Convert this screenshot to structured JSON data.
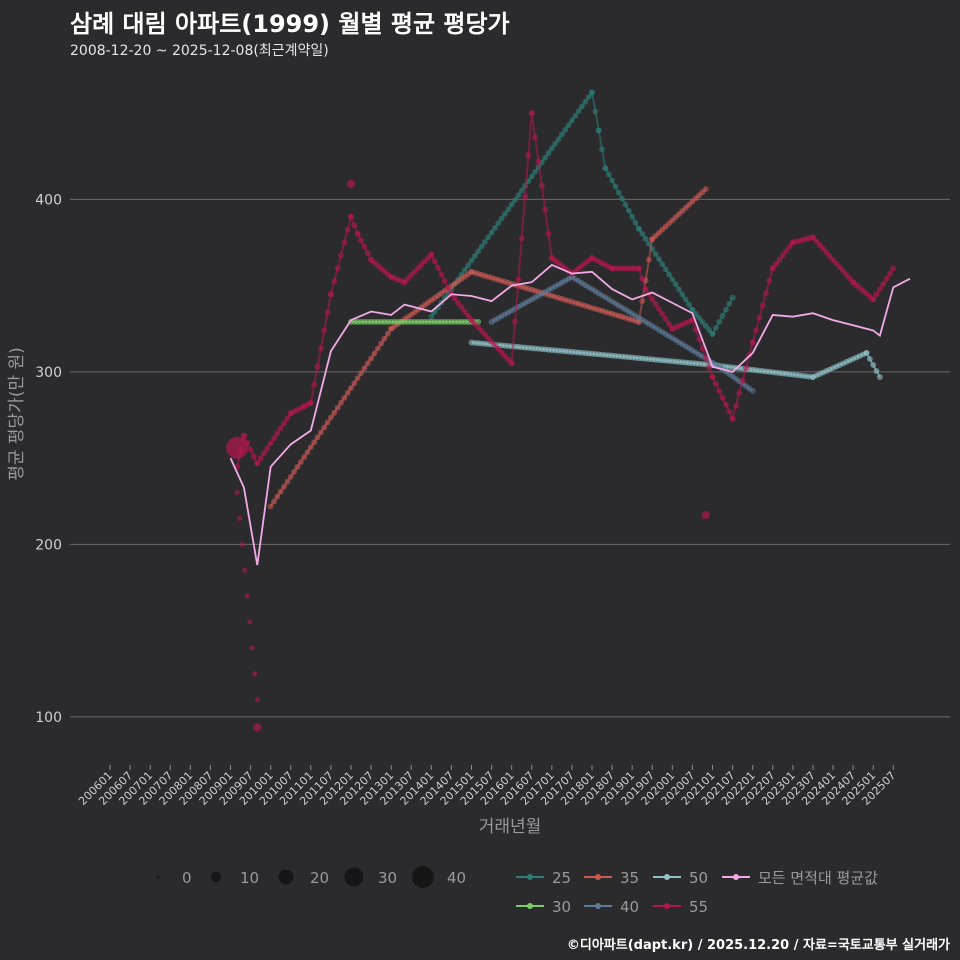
{
  "header": {
    "title": "삼례 대림 아파트(1999) 월별 평균 평당가",
    "subtitle": "2008-12-20 ~ 2025-12-08(최근계약일)"
  },
  "footer": {
    "credit": "©디아파트(dapt.kr) / 2025.12.20 / 자료=국토교통부 실거래가"
  },
  "chart_data": {
    "type": "scatter",
    "title": "삼례 대림 아파트(1999) 월별 평균 평당가",
    "xlabel": "거래년월",
    "ylabel": "평균 평당가(만 원)",
    "ylim": [
      75,
      475
    ],
    "yticks": [
      100,
      200,
      300,
      400
    ],
    "x_start": "2006-01",
    "x_end": "2025-12",
    "x_tick_labels": [
      "200601",
      "200607",
      "200701",
      "200707",
      "200801",
      "200807",
      "200901",
      "200907",
      "201001",
      "201007",
      "201101",
      "201107",
      "201201",
      "201207",
      "201301",
      "201307",
      "201401",
      "201407",
      "201501",
      "201507",
      "201601",
      "201607",
      "201701",
      "201707",
      "201801",
      "201807",
      "201901",
      "201907",
      "202001",
      "202007",
      "202101",
      "202107",
      "202201",
      "202207",
      "202301",
      "202307",
      "202401",
      "202407",
      "202501",
      "202507"
    ],
    "size_legend": {
      "values": [
        0,
        10,
        20,
        30,
        40
      ],
      "labels": [
        "0",
        "10",
        "20",
        "30",
        "40"
      ]
    },
    "series": [
      {
        "name": "25",
        "color": "#2e7d76",
        "points": [
          [
            "2014-01",
            332
          ],
          [
            "2018-01",
            462
          ],
          [
            "2018-03",
            440
          ],
          [
            "2018-05",
            418
          ],
          [
            "2019-03",
            383
          ],
          [
            "2020-07",
            336
          ],
          [
            "2021-01",
            322
          ],
          [
            "2021-07",
            343
          ]
        ]
      },
      {
        "name": "35",
        "color": "#c85a54",
        "points": [
          [
            "2010-01",
            222
          ],
          [
            "2013-01",
            325
          ],
          [
            "2015-01",
            358
          ],
          [
            "2019-03",
            329
          ],
          [
            "2019-07",
            377
          ],
          [
            "2020-11",
            406
          ]
        ]
      },
      {
        "name": "50",
        "color": "#8fc3c8",
        "points": [
          [
            "2015-01",
            317
          ],
          [
            "2021-01",
            304
          ],
          [
            "2023-07",
            297
          ],
          [
            "2024-11",
            311
          ],
          [
            "2025-03",
            297
          ]
        ]
      },
      {
        "name": "30",
        "color": "#7ccf68",
        "points": [
          [
            "2012-01",
            329
          ],
          [
            "2015-03",
            329
          ]
        ]
      },
      {
        "name": "40",
        "color": "#5d7a97",
        "points": [
          [
            "2015-07",
            329
          ],
          [
            "2017-07",
            355
          ],
          [
            "2021-03",
            303
          ],
          [
            "2022-01",
            289
          ]
        ]
      },
      {
        "name": "55",
        "color": "#b5174f",
        "points": [
          [
            "2009-03",
            245
          ],
          [
            "2009-05",
            263
          ],
          [
            "2009-09",
            247
          ],
          [
            "2010-07",
            276
          ],
          [
            "2010-11",
            280
          ],
          [
            "2011-01",
            282
          ],
          [
            "2011-07",
            345
          ],
          [
            "2012-01",
            390
          ],
          [
            "2012-03",
            380
          ],
          [
            "2012-07",
            365
          ],
          [
            "2013-01",
            355
          ],
          [
            "2013-05",
            352
          ],
          [
            "2014-01",
            368
          ],
          [
            "2014-07",
            345
          ],
          [
            "2015-01",
            330
          ],
          [
            "2016-01",
            305
          ],
          [
            "2016-07",
            450
          ],
          [
            "2017-01",
            366
          ],
          [
            "2017-07",
            357
          ],
          [
            "2018-01",
            366
          ],
          [
            "2018-07",
            360
          ],
          [
            "2019-03",
            360
          ],
          [
            "2019-05",
            348
          ],
          [
            "2020-01",
            325
          ],
          [
            "2020-07",
            330
          ],
          [
            "2021-01",
            297
          ],
          [
            "2021-07",
            273
          ],
          [
            "2022-01",
            317
          ],
          [
            "2022-07",
            360
          ],
          [
            "2023-01",
            375
          ],
          [
            "2023-07",
            378
          ],
          [
            "2024-07",
            352
          ],
          [
            "2025-01",
            342
          ],
          [
            "2025-07",
            360
          ]
        ]
      }
    ],
    "single_points": [
      {
        "series": "55",
        "x": "2009-09",
        "y": 94
      },
      {
        "series": "55",
        "x": "2020-11",
        "y": 217
      },
      {
        "series": "55",
        "x": "2012-01",
        "y": 409
      },
      {
        "series": "55",
        "x": "2009-03",
        "y": 256,
        "size": 35
      }
    ],
    "dotted_drop": {
      "series": "55",
      "from": [
        "2009-03",
        230
      ],
      "to": [
        "2009-09",
        110
      ]
    },
    "average_line": {
      "name": "모든 면적대 평균값",
      "color": "#f2a9e6",
      "points": [
        [
          "2009-01",
          250
        ],
        [
          "2009-05",
          233
        ],
        [
          "2009-09",
          188
        ],
        [
          "2010-01",
          245
        ],
        [
          "2010-07",
          258
        ],
        [
          "2011-01",
          266
        ],
        [
          "2011-07",
          312
        ],
        [
          "2012-01",
          330
        ],
        [
          "2012-07",
          335
        ],
        [
          "2013-01",
          333
        ],
        [
          "2013-05",
          339
        ],
        [
          "2014-01",
          335
        ],
        [
          "2014-07",
          345
        ],
        [
          "2015-01",
          344
        ],
        [
          "2015-07",
          341
        ],
        [
          "2016-01",
          350
        ],
        [
          "2016-07",
          352
        ],
        [
          "2017-01",
          362
        ],
        [
          "2017-07",
          357
        ],
        [
          "2018-01",
          358
        ],
        [
          "2018-07",
          348
        ],
        [
          "2019-01",
          342
        ],
        [
          "2019-07",
          346
        ],
        [
          "2020-01",
          340
        ],
        [
          "2020-07",
          334
        ],
        [
          "2021-01",
          303
        ],
        [
          "2021-07",
          300
        ],
        [
          "2022-01",
          311
        ],
        [
          "2022-07",
          333
        ],
        [
          "2023-01",
          332
        ],
        [
          "2023-07",
          334
        ],
        [
          "2024-01",
          330
        ],
        [
          "2024-07",
          327
        ],
        [
          "2025-01",
          324
        ],
        [
          "2025-03",
          321
        ],
        [
          "2025-07",
          349
        ],
        [
          "2025-12",
          354
        ]
      ]
    },
    "legend": {
      "color_entries": [
        {
          "label": "25",
          "color": "#2e7d76"
        },
        {
          "label": "35",
          "color": "#c85a54"
        },
        {
          "label": "50",
          "color": "#8fc3c8"
        },
        {
          "label": "모든 면적대 평균값",
          "color": "#f2a9e6"
        },
        {
          "label": "30",
          "color": "#7ccf68"
        },
        {
          "label": "40",
          "color": "#5d7a97"
        },
        {
          "label": "55",
          "color": "#b5174f"
        }
      ]
    }
  }
}
